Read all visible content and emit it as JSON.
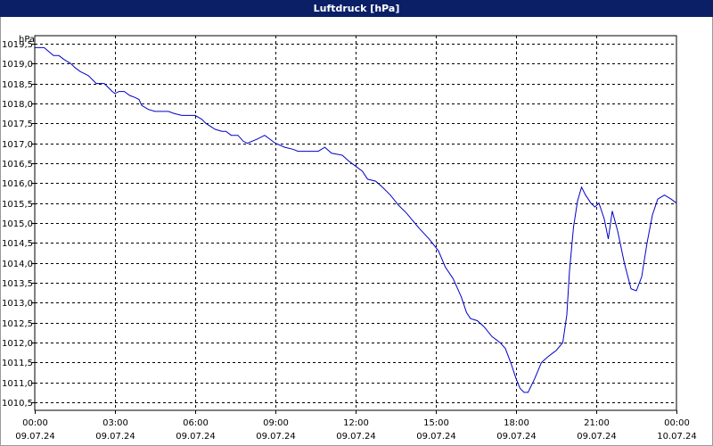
{
  "title": "Luftdruck [hPa]",
  "colors": {
    "titlebar": "#0a1f66",
    "line": "#0000c8",
    "grid": "#000000"
  },
  "chart_data": {
    "type": "line",
    "title": "Luftdruck [hPa]",
    "ylabel": "hPa",
    "xlabel": "",
    "ylim": [
      1010.3,
      1019.7
    ],
    "xlim": [
      0,
      24
    ],
    "grid": true,
    "y_ticks": [
      "1010,5",
      "1011,0",
      "1011,5",
      "1012,0",
      "1012,5",
      "1013,0",
      "1013,5",
      "1014,0",
      "1014,5",
      "1015,0",
      "1015,5",
      "1016,0",
      "1016,5",
      "1017,0",
      "1017,5",
      "1018,0",
      "1018,5",
      "1019,0",
      "1019,5"
    ],
    "x_ticks": [
      {
        "time": "00:00",
        "date": "09.07.24"
      },
      {
        "time": "03:00",
        "date": "09.07.24"
      },
      {
        "time": "06:00",
        "date": "09.07.24"
      },
      {
        "time": "09:00",
        "date": "09.07.24"
      },
      {
        "time": "12:00",
        "date": "09.07.24"
      },
      {
        "time": "15:00",
        "date": "09.07.24"
      },
      {
        "time": "18:00",
        "date": "09.07.24"
      },
      {
        "time": "21:00",
        "date": "09.07.24"
      },
      {
        "time": "00:00",
        "date": "10.07.24"
      }
    ],
    "series": [
      {
        "x": [
          0,
          0.35,
          0.7,
          0.9,
          1.1,
          1.35,
          1.5,
          1.7,
          2.0,
          2.3,
          2.6,
          2.75,
          2.9,
          3.0,
          3.15,
          3.35,
          3.55,
          3.75,
          3.9,
          4.0,
          4.25,
          4.5,
          5.0,
          5.2,
          5.5,
          5.8,
          6.0,
          6.25,
          6.4,
          6.75,
          7.0,
          7.15,
          7.35,
          7.6,
          7.8,
          7.95,
          8.3,
          8.6,
          9.0,
          9.35,
          9.65,
          9.85,
          10.0,
          10.3,
          10.6,
          10.85,
          11.1,
          11.5,
          11.75,
          11.95,
          12.25,
          12.45,
          12.75,
          13.0,
          13.3,
          13.6,
          13.9,
          14.15,
          14.4,
          14.75,
          15.1,
          15.35,
          15.65,
          15.95,
          16.15,
          16.3,
          16.55,
          16.8,
          17.1,
          17.4,
          17.6,
          17.8,
          18.0,
          18.15,
          18.3,
          18.45,
          18.7,
          18.95,
          19.2,
          19.4,
          19.5,
          19.75,
          19.9,
          20.0,
          20.15,
          20.3,
          20.45,
          20.6,
          20.8,
          20.95,
          21.1,
          21.3,
          21.45,
          21.6,
          21.8,
          22.05,
          22.3,
          22.5,
          22.7,
          22.9,
          23.1,
          23.3,
          23.55,
          23.8,
          24.0
        ],
        "y": [
          1019.4,
          1019.4,
          1019.2,
          1019.2,
          1019.1,
          1019.0,
          1018.9,
          1018.8,
          1018.7,
          1018.5,
          1018.5,
          1018.4,
          1018.3,
          1018.25,
          1018.3,
          1018.3,
          1018.2,
          1018.15,
          1018.1,
          1017.95,
          1017.85,
          1017.8,
          1017.8,
          1017.75,
          1017.7,
          1017.7,
          1017.7,
          1017.6,
          1017.5,
          1017.35,
          1017.3,
          1017.3,
          1017.2,
          1017.2,
          1017.05,
          1017.0,
          1017.1,
          1017.2,
          1017.0,
          1016.9,
          1016.85,
          1016.8,
          1016.8,
          1016.8,
          1016.8,
          1016.9,
          1016.75,
          1016.7,
          1016.55,
          1016.45,
          1016.3,
          1016.1,
          1016.05,
          1015.9,
          1015.7,
          1015.45,
          1015.25,
          1015.05,
          1014.85,
          1014.6,
          1014.3,
          1013.9,
          1013.6,
          1013.15,
          1012.75,
          1012.6,
          1012.55,
          1012.4,
          1012.15,
          1012.0,
          1011.85,
          1011.5,
          1011.1,
          1010.85,
          1010.75,
          1010.75,
          1011.1,
          1011.5,
          1011.65,
          1011.75,
          1011.8,
          1012.0,
          1012.7,
          1013.8,
          1014.9,
          1015.55,
          1015.9,
          1015.7,
          1015.5,
          1015.4,
          1015.5,
          1015.1,
          1014.6,
          1015.3,
          1014.8,
          1014.0,
          1013.35,
          1013.3,
          1013.65,
          1014.5,
          1015.2,
          1015.6,
          1015.7,
          1015.6,
          1015.5
        ]
      }
    ]
  }
}
